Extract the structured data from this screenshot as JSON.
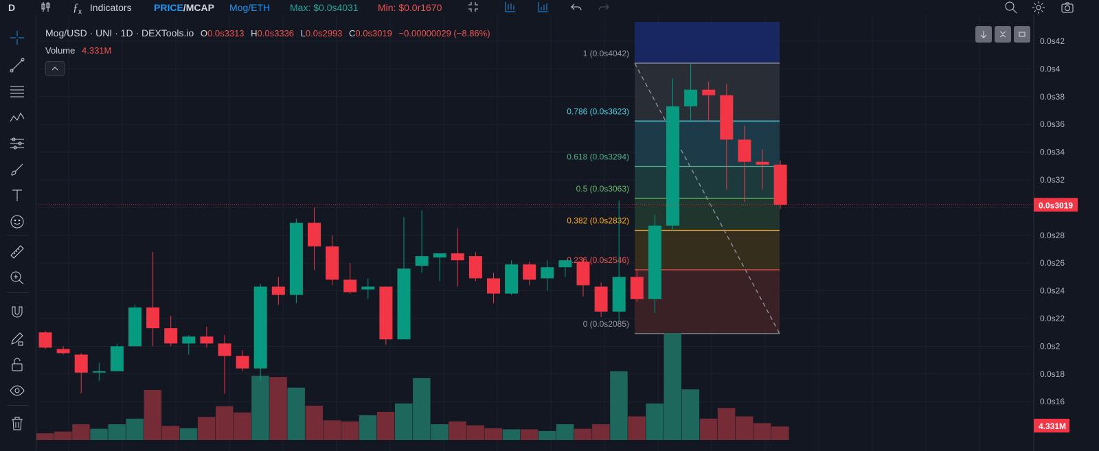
{
  "topbar": {
    "symbol_short": "D",
    "indicators_label": "Indicators",
    "price_label": "PRICE",
    "mcap_label": "MCAP",
    "slash": "/",
    "pair_label": "Mog/ETH",
    "max_label": "Max: $0.0s4031",
    "min_label": "Min: $0.0r1670",
    "colors": {
      "accent": "#2196f3",
      "green": "#26a69a",
      "red": "#ef5350"
    }
  },
  "legend": {
    "title": "Mog/USD · UNI · 1D · DEXTools.io",
    "o_key": "O",
    "o_val": "0.0s3313",
    "h_key": "H",
    "h_val": "0.0s3336",
    "l_key": "L",
    "l_val": "0.0s2993",
    "c_key": "C",
    "c_val": "0.0s3019",
    "change": "−0.00000029 (−8.86%)",
    "volume_key": "Volume",
    "volume_val": "4.331M"
  },
  "price_axis": {
    "ticks": [
      "0.0s42",
      "0.0s4",
      "0.0s38",
      "0.0s36",
      "0.0s34",
      "0.0s32",
      "0.0s3",
      "0.0s28",
      "0.0s26",
      "0.0s24",
      "0.0s22",
      "0.0s2",
      "0.0s18",
      "0.0s16"
    ],
    "current_price": "0.0s3019",
    "current_volume": "4.331M"
  },
  "fib": {
    "levels": [
      {
        "label": "1 (0.0s4042)",
        "ratio": 1,
        "color": "#9598a1"
      },
      {
        "label": "0.786 (0.0s3623)",
        "ratio": 0.786,
        "color": "#4dd0e1"
      },
      {
        "label": "0.618 (0.0s3294)",
        "ratio": 0.618,
        "color": "#4caf8a"
      },
      {
        "label": "0.5 (0.0s3063)",
        "ratio": 0.5,
        "color": "#66bb6a"
      },
      {
        "label": "0.382 (0.0s2832)",
        "ratio": 0.382,
        "color": "#ffa726"
      },
      {
        "label": "0.236 (0.0s2546)",
        "ratio": 0.236,
        "color": "#ef5350"
      },
      {
        "label": "0 (0.0s2085)",
        "ratio": 0,
        "color": "#9598a1"
      }
    ]
  },
  "chart_data": {
    "type": "candlestick",
    "price_unit_note": "0.0s = 0.000000",
    "ylim": [
      0.15,
      0.43
    ],
    "candles": [
      {
        "o": 0.21,
        "h": 0.211,
        "l": 0.198,
        "c": 0.199
      },
      {
        "o": 0.198,
        "h": 0.2,
        "l": 0.194,
        "c": 0.195
      },
      {
        "o": 0.194,
        "h": 0.195,
        "l": 0.166,
        "c": 0.181
      },
      {
        "o": 0.181,
        "h": 0.188,
        "l": 0.175,
        "c": 0.182
      },
      {
        "o": 0.182,
        "h": 0.202,
        "l": 0.182,
        "c": 0.2
      },
      {
        "o": 0.2,
        "h": 0.23,
        "l": 0.2,
        "c": 0.228
      },
      {
        "o": 0.228,
        "h": 0.268,
        "l": 0.2,
        "c": 0.213
      },
      {
        "o": 0.213,
        "h": 0.222,
        "l": 0.2,
        "c": 0.202
      },
      {
        "o": 0.202,
        "h": 0.208,
        "l": 0.194,
        "c": 0.207
      },
      {
        "o": 0.207,
        "h": 0.214,
        "l": 0.199,
        "c": 0.202
      },
      {
        "o": 0.202,
        "h": 0.208,
        "l": 0.166,
        "c": 0.193
      },
      {
        "o": 0.193,
        "h": 0.197,
        "l": 0.182,
        "c": 0.184
      },
      {
        "o": 0.184,
        "h": 0.245,
        "l": 0.175,
        "c": 0.243
      },
      {
        "o": 0.243,
        "h": 0.25,
        "l": 0.23,
        "c": 0.237
      },
      {
        "o": 0.237,
        "h": 0.292,
        "l": 0.231,
        "c": 0.289
      },
      {
        "o": 0.289,
        "h": 0.3,
        "l": 0.255,
        "c": 0.272
      },
      {
        "o": 0.272,
        "h": 0.28,
        "l": 0.244,
        "c": 0.248
      },
      {
        "o": 0.248,
        "h": 0.26,
        "l": 0.238,
        "c": 0.239
      },
      {
        "o": 0.241,
        "h": 0.249,
        "l": 0.234,
        "c": 0.243
      },
      {
        "o": 0.243,
        "h": 0.243,
        "l": 0.201,
        "c": 0.205
      },
      {
        "o": 0.205,
        "h": 0.293,
        "l": 0.205,
        "c": 0.256
      },
      {
        "o": 0.258,
        "h": 0.298,
        "l": 0.253,
        "c": 0.265
      },
      {
        "o": 0.264,
        "h": 0.267,
        "l": 0.247,
        "c": 0.267
      },
      {
        "o": 0.267,
        "h": 0.285,
        "l": 0.243,
        "c": 0.262
      },
      {
        "o": 0.265,
        "h": 0.268,
        "l": 0.247,
        "c": 0.249
      },
      {
        "o": 0.249,
        "h": 0.253,
        "l": 0.231,
        "c": 0.238
      },
      {
        "o": 0.238,
        "h": 0.262,
        "l": 0.237,
        "c": 0.259
      },
      {
        "o": 0.259,
        "h": 0.261,
        "l": 0.244,
        "c": 0.248
      },
      {
        "o": 0.249,
        "h": 0.262,
        "l": 0.24,
        "c": 0.257
      },
      {
        "o": 0.257,
        "h": 0.261,
        "l": 0.25,
        "c": 0.262
      },
      {
        "o": 0.261,
        "h": 0.264,
        "l": 0.236,
        "c": 0.244
      },
      {
        "o": 0.243,
        "h": 0.246,
        "l": 0.221,
        "c": 0.225
      },
      {
        "o": 0.225,
        "h": 0.305,
        "l": 0.218,
        "c": 0.25
      },
      {
        "o": 0.25,
        "h": 0.255,
        "l": 0.232,
        "c": 0.234
      },
      {
        "o": 0.234,
        "h": 0.295,
        "l": 0.224,
        "c": 0.287
      },
      {
        "o": 0.287,
        "h": 0.393,
        "l": 0.283,
        "c": 0.373
      },
      {
        "o": 0.373,
        "h": 0.404,
        "l": 0.363,
        "c": 0.385
      },
      {
        "o": 0.385,
        "h": 0.391,
        "l": 0.362,
        "c": 0.381
      },
      {
        "o": 0.381,
        "h": 0.389,
        "l": 0.313,
        "c": 0.349
      },
      {
        "o": 0.349,
        "h": 0.359,
        "l": 0.304,
        "c": 0.333
      },
      {
        "o": 0.333,
        "h": 0.342,
        "l": 0.313,
        "c": 0.331
      },
      {
        "o": 0.331,
        "h": 0.334,
        "l": 0.299,
        "c": 0.302
      }
    ],
    "volume_rel": [
      0.12,
      0.15,
      0.28,
      0.2,
      0.28,
      0.38,
      0.89,
      0.25,
      0.21,
      0.41,
      0.6,
      0.49,
      1.14,
      1.12,
      0.93,
      0.61,
      0.35,
      0.33,
      0.44,
      0.5,
      0.65,
      1.1,
      0.28,
      0.33,
      0.26,
      0.21,
      0.19,
      0.19,
      0.16,
      0.28,
      0.2,
      0.28,
      1.22,
      0.42,
      0.65,
      1.9,
      0.9,
      0.38,
      0.57,
      0.42,
      0.3,
      0.24
    ]
  }
}
